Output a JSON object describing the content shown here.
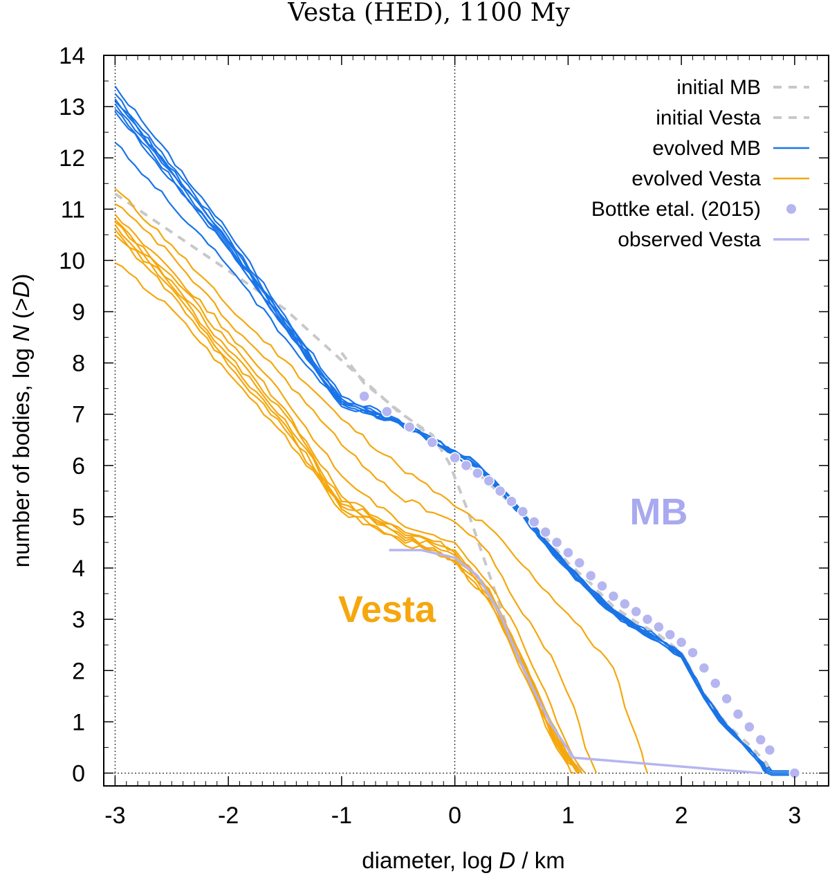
{
  "chart_data": {
    "type": "line",
    "title": "Vesta (HED), 1100 My",
    "xlabel": "diameter, log D / km",
    "ylabel": "number of bodies, log N (>D)",
    "xlim": [
      -3.1,
      3.3
    ],
    "ylim": [
      -0.25,
      14
    ],
    "xticks": [
      "-3",
      "-2",
      "-1",
      "0",
      "1",
      "2",
      "3"
    ],
    "yticks": [
      "0",
      "1",
      "2",
      "3",
      "4",
      "5",
      "6",
      "7",
      "8",
      "9",
      "10",
      "11",
      "12",
      "13",
      "14"
    ],
    "reference_lines": {
      "vertical": [
        -3,
        0
      ],
      "horizontal": [
        0
      ]
    },
    "colors": {
      "initial": "#c8c8c8",
      "evolved_mb": "#1a74e8",
      "evolved_vesta": "#f5a70d",
      "bottke": "#b5b5f0",
      "observed": "#b5b5f0",
      "label_mb": "#a9a9f0",
      "label_vesta": "#f5a70d"
    },
    "legend": {
      "position": "top-right",
      "entries": [
        {
          "label": "initial MB",
          "style": "dashed",
          "series": "initial_mb"
        },
        {
          "label": "initial Vesta",
          "style": "dashed",
          "series": "initial_vesta"
        },
        {
          "label": "evolved MB",
          "style": "line",
          "series": "evolved_mb"
        },
        {
          "label": "evolved Vesta",
          "style": "line",
          "series": "evolved_vesta"
        },
        {
          "label": "Bottke etal. (2015)",
          "style": "points",
          "series": "bottke"
        },
        {
          "label": "observed Vesta",
          "style": "line",
          "series": "observed"
        }
      ]
    },
    "annotations": [
      {
        "text": "MB",
        "x": 1.8,
        "y": 4.85,
        "color_key": "label_mb"
      },
      {
        "text": "Vesta",
        "x": -0.6,
        "y": 2.95,
        "color_key": "label_vesta"
      }
    ],
    "series": {
      "initial_mb": {
        "name": "initial MB",
        "points": [
          [
            -1.0,
            8.2
          ],
          [
            -0.8,
            7.6
          ],
          [
            -0.6,
            7.25
          ],
          [
            -0.4,
            6.9
          ],
          [
            -0.2,
            6.55
          ],
          [
            0,
            6.15
          ],
          [
            0.2,
            5.85
          ],
          [
            0.4,
            5.45
          ],
          [
            0.6,
            5.05
          ],
          [
            0.8,
            4.6
          ],
          [
            1.0,
            4.1
          ],
          [
            1.2,
            3.7
          ],
          [
            1.4,
            3.25
          ],
          [
            1.6,
            2.95
          ],
          [
            1.8,
            2.7
          ],
          [
            2.0,
            2.35
          ],
          [
            2.2,
            1.55
          ],
          [
            2.4,
            0.95
          ],
          [
            2.6,
            0.55
          ],
          [
            2.75,
            0.2
          ],
          [
            2.8,
            0.0
          ]
        ]
      },
      "initial_vesta": {
        "name": "initial Vesta",
        "points": [
          [
            -3.0,
            11.3
          ],
          [
            -2.5,
            10.55
          ],
          [
            -2.0,
            9.8
          ],
          [
            -1.5,
            9.05
          ],
          [
            -1.0,
            8.05
          ],
          [
            -0.5,
            7.05
          ],
          [
            -0.2,
            6.6
          ],
          [
            -0.05,
            6.05
          ],
          [
            0.1,
            5.2
          ],
          [
            0.3,
            3.9
          ],
          [
            0.5,
            2.6
          ],
          [
            0.7,
            1.6
          ],
          [
            0.9,
            0.75
          ],
          [
            1.05,
            0.2
          ],
          [
            1.15,
            0.0
          ]
        ]
      },
      "evolved_mb": {
        "name": "evolved MB",
        "runs": [
          {
            "start": [
              -3.0,
              13.4
            ],
            "mid": [
              -1.0,
              7.35
            ],
            "end": 2.8
          },
          {
            "start": [
              -3.0,
              13.25
            ],
            "mid": [
              -1.0,
              7.3
            ],
            "end": 2.8
          },
          {
            "start": [
              -3.0,
              13.15
            ],
            "mid": [
              -1.0,
              7.25
            ],
            "end": 2.8
          },
          {
            "start": [
              -3.0,
              13.1
            ],
            "mid": [
              -1.0,
              7.25
            ],
            "end": 2.8
          },
          {
            "start": [
              -3.0,
              13.05
            ],
            "mid": [
              -1.0,
              7.2
            ],
            "end": 2.8
          },
          {
            "start": [
              -3.0,
              12.95
            ],
            "mid": [
              -1.0,
              7.2
            ],
            "end": 2.8
          },
          {
            "start": [
              -3.0,
              12.9
            ],
            "mid": [
              -1.0,
              7.2
            ],
            "end": 2.8
          },
          {
            "start": [
              -3.0,
              12.3
            ],
            "mid": [
              -1.0,
              7.15
            ],
            "end": 2.8
          }
        ],
        "shared_tail": [
          [
            0.0,
            6.25
          ],
          [
            0.2,
            6.0
          ],
          [
            0.4,
            5.55
          ],
          [
            0.6,
            5.05
          ],
          [
            0.8,
            4.5
          ],
          [
            1.0,
            4.0
          ],
          [
            1.2,
            3.55
          ],
          [
            1.4,
            3.15
          ],
          [
            1.6,
            2.85
          ],
          [
            1.8,
            2.6
          ],
          [
            2.0,
            2.3
          ],
          [
            2.2,
            1.5
          ],
          [
            2.4,
            0.9
          ],
          [
            2.6,
            0.45
          ],
          [
            2.7,
            0.2
          ],
          [
            2.75,
            0.05
          ],
          [
            2.8,
            0.0
          ],
          [
            2.95,
            0.0
          ]
        ]
      },
      "evolved_vesta": {
        "name": "evolved Vesta",
        "runs": [
          {
            "points": [
              [
                -3.0,
                11.4
              ],
              [
                -2.5,
                10.3
              ],
              [
                -2.0,
                9.1
              ],
              [
                -1.5,
                8.05
              ],
              [
                -1.0,
                6.9
              ],
              [
                -0.5,
                6.0
              ],
              [
                0.0,
                5.2
              ],
              [
                0.3,
                4.8
              ],
              [
                0.6,
                4.05
              ],
              [
                1.0,
                3.1
              ],
              [
                1.4,
                2.05
              ],
              [
                1.55,
                1.0
              ],
              [
                1.65,
                0.4
              ],
              [
                1.7,
                0.0
              ]
            ]
          },
          {
            "points": [
              [
                -3.0,
                11.1
              ],
              [
                -2.5,
                10.1
              ],
              [
                -2.0,
                8.8
              ],
              [
                -1.5,
                7.7
              ],
              [
                -1.0,
                6.4
              ],
              [
                -0.5,
                5.4
              ],
              [
                0.0,
                4.9
              ],
              [
                0.3,
                4.3
              ],
              [
                0.6,
                3.1
              ],
              [
                0.85,
                2.3
              ],
              [
                1.05,
                1.3
              ],
              [
                1.15,
                0.5
              ],
              [
                1.25,
                0.0
              ]
            ]
          },
          {
            "points": [
              [
                -3.0,
                10.9
              ],
              [
                -2.5,
                9.8
              ],
              [
                -2.0,
                8.6
              ],
              [
                -1.5,
                7.3
              ],
              [
                -1.0,
                5.8
              ],
              [
                -0.5,
                4.9
              ],
              [
                0.0,
                4.5
              ],
              [
                0.3,
                3.7
              ],
              [
                0.55,
                2.8
              ],
              [
                0.75,
                1.8
              ],
              [
                0.9,
                1.0
              ],
              [
                1.05,
                0.3
              ],
              [
                1.15,
                0.0
              ]
            ]
          },
          {
            "points": [
              [
                -3.0,
                10.8
              ],
              [
                -2.5,
                9.7
              ],
              [
                -2.0,
                8.4
              ],
              [
                -1.5,
                7.1
              ],
              [
                -1.0,
                5.4
              ],
              [
                -0.5,
                4.8
              ],
              [
                0.0,
                4.35
              ],
              [
                0.3,
                3.6
              ],
              [
                0.5,
                2.7
              ],
              [
                0.7,
                1.75
              ],
              [
                0.85,
                1.0
              ],
              [
                1.0,
                0.35
              ],
              [
                1.12,
                0.0
              ]
            ]
          },
          {
            "points": [
              [
                -3.0,
                10.75
              ],
              [
                -2.5,
                9.6
              ],
              [
                -2.0,
                8.25
              ],
              [
                -1.5,
                7.0
              ],
              [
                -1.0,
                5.3
              ],
              [
                -0.5,
                4.75
              ],
              [
                0.0,
                4.3
              ],
              [
                0.3,
                3.55
              ],
              [
                0.5,
                2.65
              ],
              [
                0.7,
                1.7
              ],
              [
                0.85,
                0.9
              ],
              [
                1.0,
                0.3
              ],
              [
                1.1,
                0.0
              ]
            ]
          },
          {
            "points": [
              [
                -3.0,
                10.7
              ],
              [
                -2.5,
                9.5
              ],
              [
                -2.0,
                8.15
              ],
              [
                -1.5,
                6.9
              ],
              [
                -1.0,
                5.25
              ],
              [
                -0.5,
                4.7
              ],
              [
                0.0,
                4.25
              ],
              [
                0.3,
                3.5
              ],
              [
                0.5,
                2.6
              ],
              [
                0.7,
                1.65
              ],
              [
                0.85,
                0.85
              ],
              [
                1.0,
                0.25
              ],
              [
                1.1,
                0.0
              ]
            ]
          },
          {
            "points": [
              [
                -3.0,
                10.6
              ],
              [
                -2.5,
                9.45
              ],
              [
                -2.0,
                8.05
              ],
              [
                -1.5,
                6.8
              ],
              [
                -1.0,
                5.2
              ],
              [
                -0.5,
                4.65
              ],
              [
                0.0,
                4.2
              ],
              [
                0.3,
                3.45
              ],
              [
                0.5,
                2.55
              ],
              [
                0.7,
                1.6
              ],
              [
                0.85,
                0.8
              ],
              [
                1.0,
                0.2
              ],
              [
                1.1,
                0.0
              ]
            ]
          },
          {
            "points": [
              [
                -3.0,
                10.5
              ],
              [
                -2.5,
                9.35
              ],
              [
                -2.0,
                7.95
              ],
              [
                -1.5,
                6.7
              ],
              [
                -1.0,
                5.15
              ],
              [
                -0.5,
                4.6
              ],
              [
                0.0,
                4.15
              ],
              [
                0.3,
                3.4
              ],
              [
                0.5,
                2.5
              ],
              [
                0.7,
                1.55
              ],
              [
                0.85,
                0.75
              ],
              [
                1.0,
                0.2
              ],
              [
                1.08,
                0.0
              ]
            ]
          },
          {
            "points": [
              [
                -3.0,
                9.95
              ],
              [
                -2.5,
                9.05
              ],
              [
                -2.0,
                7.8
              ],
              [
                -1.5,
                6.6
              ],
              [
                -1.0,
                5.1
              ],
              [
                -0.5,
                4.55
              ],
              [
                0.0,
                4.1
              ],
              [
                0.3,
                3.35
              ],
              [
                0.5,
                2.45
              ],
              [
                0.7,
                1.5
              ],
              [
                0.85,
                0.7
              ],
              [
                1.0,
                0.15
              ],
              [
                1.05,
                0.0
              ]
            ]
          }
        ]
      },
      "bottke": {
        "name": "Bottke etal. (2015)",
        "points": [
          [
            -0.8,
            7.35
          ],
          [
            -0.6,
            7.05
          ],
          [
            -0.4,
            6.75
          ],
          [
            -0.2,
            6.45
          ],
          [
            0.0,
            6.15
          ],
          [
            0.1,
            6.0
          ],
          [
            0.2,
            5.85
          ],
          [
            0.3,
            5.7
          ],
          [
            0.4,
            5.5
          ],
          [
            0.5,
            5.3
          ],
          [
            0.6,
            5.1
          ],
          [
            0.7,
            4.9
          ],
          [
            0.8,
            4.7
          ],
          [
            0.9,
            4.5
          ],
          [
            1.0,
            4.3
          ],
          [
            1.1,
            4.1
          ],
          [
            1.2,
            3.85
          ],
          [
            1.3,
            3.65
          ],
          [
            1.4,
            3.45
          ],
          [
            1.5,
            3.3
          ],
          [
            1.6,
            3.15
          ],
          [
            1.7,
            3.0
          ],
          [
            1.8,
            2.85
          ],
          [
            1.9,
            2.7
          ],
          [
            2.0,
            2.55
          ],
          [
            2.1,
            2.35
          ],
          [
            2.2,
            2.05
          ],
          [
            2.3,
            1.75
          ],
          [
            2.4,
            1.45
          ],
          [
            2.5,
            1.15
          ],
          [
            2.6,
            0.9
          ],
          [
            2.7,
            0.65
          ],
          [
            2.78,
            0.45
          ],
          [
            3.0,
            0.0
          ]
        ]
      },
      "observed": {
        "name": "observed Vesta",
        "points": [
          [
            -0.58,
            4.35
          ],
          [
            -0.3,
            4.35
          ],
          [
            0.0,
            4.2
          ],
          [
            0.2,
            3.85
          ],
          [
            0.4,
            3.1
          ],
          [
            0.55,
            2.3
          ],
          [
            0.7,
            1.6
          ],
          [
            0.85,
            0.95
          ],
          [
            1.05,
            0.3
          ],
          [
            2.7,
            0.0
          ]
        ]
      }
    }
  }
}
